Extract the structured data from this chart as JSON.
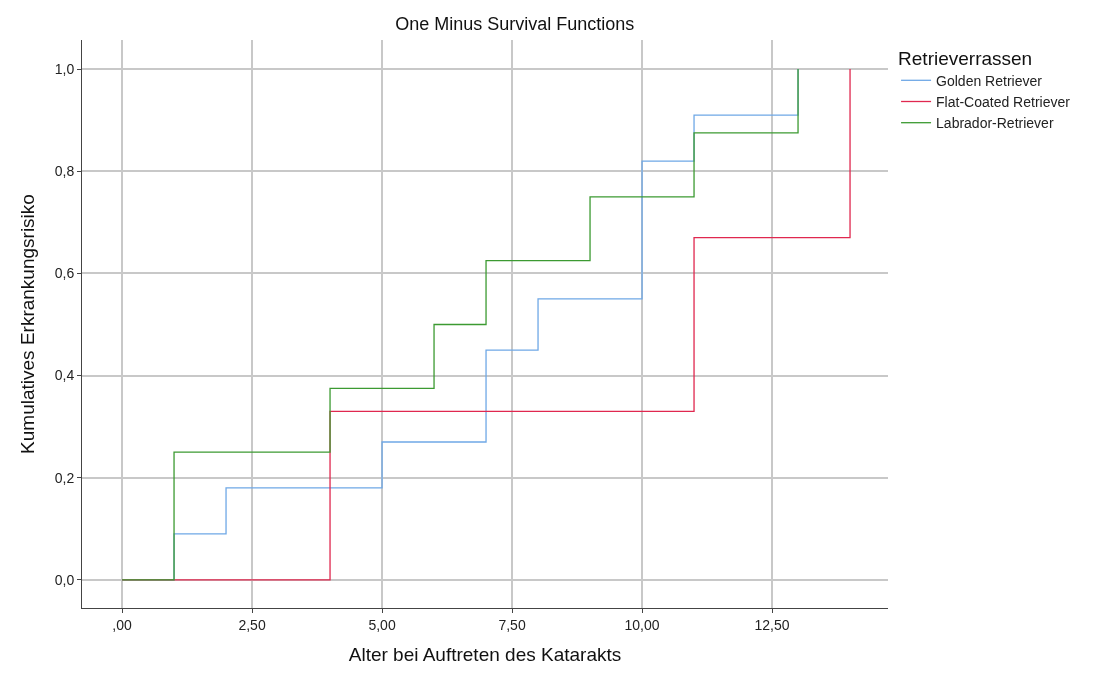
{
  "chart_data": {
    "type": "step",
    "title": "One Minus Survival Functions",
    "xlabel": "Alter bei Auftreten des Katarakts",
    "ylabel": "Kumulatives Erkrankungsrisiko",
    "legend_title": "Retrieverrassen",
    "series": [
      {
        "name": "Golden Retriever",
        "color": "#6fa8e6",
        "x": [
          0,
          1,
          2,
          5,
          7,
          8,
          10,
          11,
          13
        ],
        "values": [
          0,
          0.09,
          0.18,
          0.27,
          0.45,
          0.55,
          0.82,
          0.91,
          1.0
        ]
      },
      {
        "name": "Flat-Coated Retriever",
        "color": "#e0284f",
        "x": [
          0,
          4,
          11,
          14
        ],
        "values": [
          0,
          0.33,
          0.67,
          1.0
        ]
      },
      {
        "name": "Labrador-Retriever",
        "color": "#3c9a32",
        "x": [
          0,
          1,
          4,
          6,
          7,
          9,
          11,
          13
        ],
        "values": [
          0,
          0.25,
          0.375,
          0.5,
          0.625,
          0.75,
          0.875,
          1.0
        ]
      }
    ],
    "xlim": [
      -0.77,
      14.73
    ],
    "ylim": [
      -0.055,
      1.057
    ],
    "xticks": [
      {
        "value": 0,
        "label": ",00"
      },
      {
        "value": 2.5,
        "label": "2,50"
      },
      {
        "value": 5,
        "label": "5,00"
      },
      {
        "value": 7.5,
        "label": "7,50"
      },
      {
        "value": 10,
        "label": "10,00"
      },
      {
        "value": 12.5,
        "label": "12,50"
      }
    ],
    "yticks": [
      {
        "value": 0,
        "label": "0,0"
      },
      {
        "value": 0.2,
        "label": "0,2"
      },
      {
        "value": 0.4,
        "label": "0,4"
      },
      {
        "value": 0.6,
        "label": "0,6"
      },
      {
        "value": 0.8,
        "label": "0,8"
      },
      {
        "value": 1.0,
        "label": "1,0"
      }
    ],
    "grid": true,
    "legend": "top right",
    "marker": "none",
    "line_style": "solid"
  }
}
